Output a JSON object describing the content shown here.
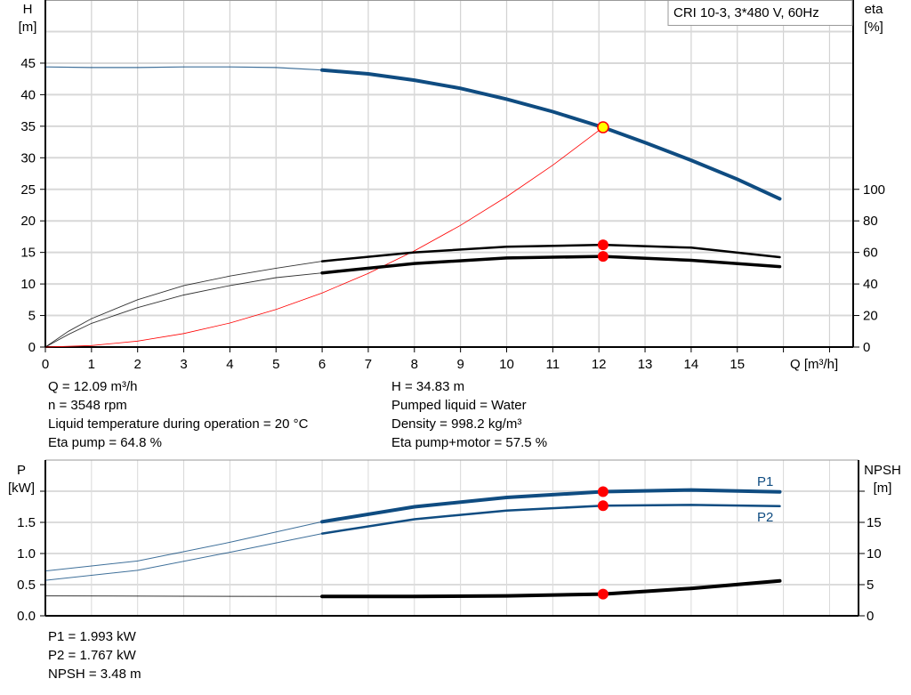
{
  "chart_data": [
    {
      "type": "line",
      "title": "CRI 10-3, 3*480 V, 60Hz",
      "xlabel": "Q [m³/h]",
      "ylabel": "H\n[m]",
      "y2label": "eta\n[%]",
      "xlim": [
        0,
        17.5
      ],
      "ylim": [
        0,
        55
      ],
      "y2lim": [
        0,
        220
      ],
      "x_ticks": [
        "0",
        "1",
        "2",
        "3",
        "4",
        "5",
        "6",
        "7",
        "8",
        "9",
        "10",
        "11",
        "12",
        "13",
        "14",
        "15"
      ],
      "y_ticks": [
        "0",
        "5",
        "10",
        "15",
        "20",
        "25",
        "30",
        "35",
        "40",
        "45"
      ],
      "y2_ticks": [
        "0",
        "20",
        "40",
        "60",
        "80",
        "100"
      ],
      "grid": true,
      "series": [
        {
          "id": "head",
          "axis": "left",
          "color": "#0f4c81",
          "x": [
            0,
            1,
            2,
            3,
            4,
            5,
            6,
            7,
            8,
            9,
            10,
            11,
            12.09,
            13,
            14,
            15,
            15.92
          ],
          "y": [
            44.4,
            44.3,
            44.3,
            44.4,
            44.4,
            44.3,
            43.9,
            43.3,
            42.3,
            41.0,
            39.3,
            37.3,
            34.83,
            32.4,
            29.6,
            26.6,
            23.5
          ]
        },
        {
          "id": "eta-pump",
          "axis": "right",
          "color": "#000000",
          "x": [
            0,
            0.5,
            1,
            2,
            3,
            4,
            5,
            6,
            8,
            10,
            12.09,
            14,
            15.92
          ],
          "y": [
            0,
            10,
            18,
            30,
            39,
            45,
            50,
            54.4,
            60,
            63.6,
            64.8,
            63,
            57
          ]
        },
        {
          "id": "eta-pump-motor",
          "axis": "right",
          "color": "#000000",
          "x": [
            0,
            0.5,
            1,
            2,
            3,
            4,
            5,
            6,
            8,
            10,
            12.09,
            14,
            15.92
          ],
          "y": [
            0,
            8,
            15,
            25,
            33,
            39,
            44,
            47,
            53,
            56.5,
            57.5,
            55,
            51
          ]
        },
        {
          "id": "system-curve",
          "axis": "left",
          "color": "#ff0000",
          "x": [
            0,
            1,
            2,
            3,
            4,
            5,
            6,
            7,
            8,
            9,
            10,
            11,
            12.09
          ],
          "y": [
            0,
            0.24,
            0.95,
            2.14,
            3.81,
            5.95,
            8.58,
            11.68,
            15.25,
            19.3,
            23.83,
            28.83,
            34.83
          ]
        }
      ],
      "duty_point": {
        "x": 12.09,
        "y": 34.83,
        "color": "#ffff00"
      },
      "markers": [
        {
          "x": 12.09,
          "eta": 64.8
        },
        {
          "x": 12.09,
          "eta": 57.5
        }
      ]
    },
    {
      "type": "line",
      "ylabel": "P\n[kW]",
      "y2label": "NPSH\n[m]",
      "xlim": [
        0,
        17.5
      ],
      "ylim": [
        0,
        2.5
      ],
      "y2lim": [
        0,
        25
      ],
      "y_ticks": [
        "0.0",
        "0.5",
        "1.0",
        "1.5"
      ],
      "y2_ticks": [
        "0",
        "5",
        "10",
        "15"
      ],
      "grid": true,
      "series": [
        {
          "id": "P1",
          "name": "P1",
          "axis": "left",
          "color": "#0f4c81",
          "x": [
            0,
            2,
            4,
            6,
            8,
            10,
            12.09,
            14,
            15.92
          ],
          "y": [
            0.72,
            0.88,
            1.18,
            1.51,
            1.75,
            1.9,
            1.993,
            2.02,
            1.99
          ]
        },
        {
          "id": "P2",
          "name": "P2",
          "axis": "left",
          "color": "#0f4c81",
          "x": [
            0,
            2,
            4,
            6,
            8,
            10,
            12.09,
            14,
            15.92
          ],
          "y": [
            0.57,
            0.73,
            1.02,
            1.32,
            1.55,
            1.69,
            1.767,
            1.78,
            1.76
          ]
        },
        {
          "id": "NPSH",
          "axis": "right",
          "color": "#000000",
          "x": [
            0,
            3,
            6,
            8,
            10,
            12.09,
            14,
            15.92
          ],
          "y": [
            3.2,
            3.15,
            3.1,
            3.12,
            3.2,
            3.48,
            4.4,
            5.6
          ]
        }
      ],
      "markers": [
        {
          "x": 12.09,
          "P": 1.993
        },
        {
          "x": 12.09,
          "P": 1.767
        },
        {
          "x": 12.09,
          "NPSH": 3.48
        }
      ]
    }
  ],
  "operating_info": {
    "left": [
      "Q = 12.09 m³/h",
      "n = 3548 rpm",
      "Liquid temperature during operation = 20 °C",
      "Eta pump = 64.8 %"
    ],
    "right": [
      "H = 34.83 m",
      "Pumped liquid = Water",
      "Density = 998.2 kg/m³",
      "Eta pump+motor = 57.5 %"
    ]
  },
  "power_info": [
    "P1 = 1.993 kW",
    "P2 = 1.767 kW",
    "NPSH = 3.48 m"
  ]
}
